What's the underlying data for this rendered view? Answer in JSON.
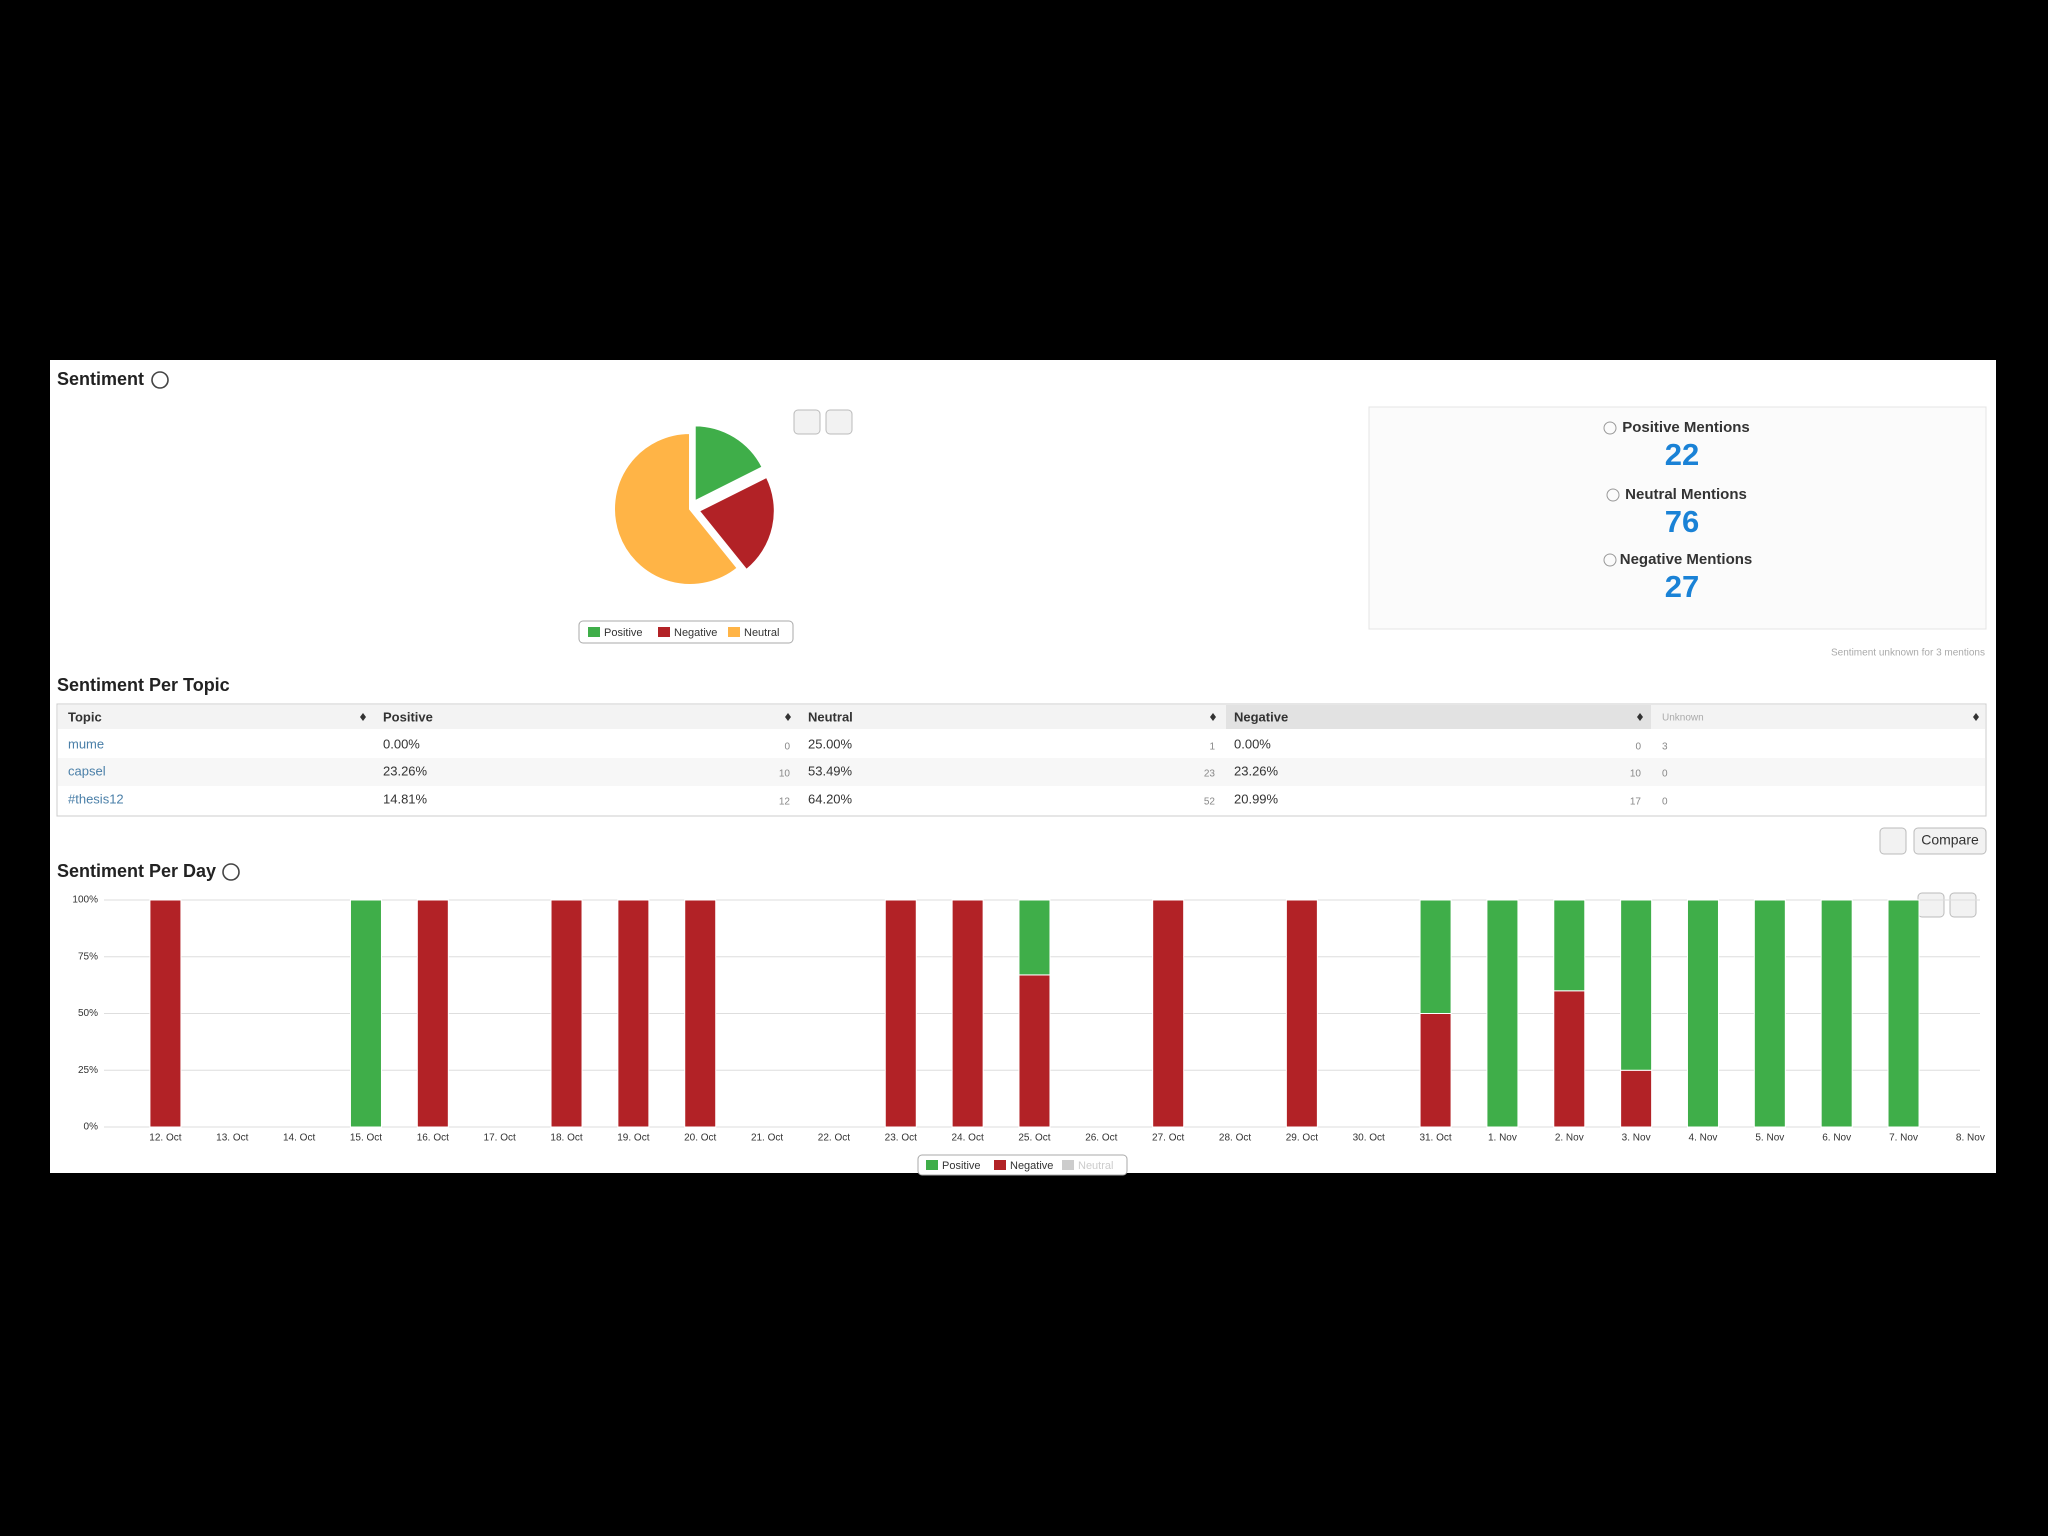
{
  "sentiment": {
    "title": "Sentiment",
    "unknown_note": "Sentiment unknown for 3 mentions"
  },
  "mentions": [
    {
      "label": "Positive Mentions",
      "value": 22
    },
    {
      "label": "Neutral Mentions",
      "value": 76
    },
    {
      "label": "Negative Mentions",
      "value": 27
    }
  ],
  "topic_table": {
    "title": "Sentiment Per Topic",
    "columns": [
      "Topic",
      "Positive",
      "Neutral",
      "Negative",
      "Unknown"
    ],
    "rows": [
      [
        "mume",
        "0.00%",
        0,
        "25.00%",
        1,
        "0.00%",
        0,
        3
      ],
      [
        "capsel",
        "23.26%",
        10,
        "53.49%",
        23,
        "23.26%",
        10,
        0
      ],
      [
        "#thesis12",
        "14.81%",
        12,
        "64.20%",
        52,
        "20.99%",
        17,
        0
      ]
    ]
  },
  "compare_button": "Compare",
  "day_title": "Sentiment Per Day",
  "chart_data": [
    {
      "type": "pie",
      "categories": [
        "Positive",
        "Negative",
        "Neutral"
      ],
      "values": [
        22,
        27,
        76
      ],
      "colors": [
        "#3fae49",
        "#b22226",
        "#ffb446"
      ],
      "sliced": [
        true,
        true,
        false
      ],
      "legend": "bottom"
    },
    {
      "type": "bar",
      "stacked": true,
      "grid": true,
      "legend": "bottom",
      "categories": [
        "12. Oct",
        "13. Oct",
        "14. Oct",
        "15. Oct",
        "16. Oct",
        "17. Oct",
        "18. Oct",
        "19. Oct",
        "20. Oct",
        "21. Oct",
        "22. Oct",
        "23. Oct",
        "24. Oct",
        "25. Oct",
        "26. Oct",
        "27. Oct",
        "28. Oct",
        "29. Oct",
        "30. Oct",
        "31. Oct",
        "1. Nov",
        "2. Nov",
        "3. Nov",
        "4. Nov",
        "5. Nov",
        "6. Nov",
        "7. Nov",
        "8. Nov"
      ],
      "series": [
        {
          "name": "Positive",
          "color": "#3fae49",
          "visible": true,
          "values": [
            0,
            0,
            0,
            100,
            0,
            0,
            0,
            0,
            0,
            0,
            0,
            0,
            0,
            33,
            0,
            0,
            0,
            0,
            0,
            50,
            100,
            40,
            75,
            100,
            100,
            100,
            100,
            0
          ]
        },
        {
          "name": "Negative",
          "color": "#b22226",
          "visible": true,
          "values": [
            100,
            0,
            0,
            0,
            100,
            0,
            100,
            100,
            100,
            0,
            0,
            100,
            100,
            67,
            0,
            100,
            0,
            100,
            0,
            50,
            0,
            60,
            25,
            0,
            0,
            0,
            0,
            0
          ]
        },
        {
          "name": "Neutral",
          "color": "#ffb446",
          "visible": false,
          "values": [
            0,
            0,
            0,
            0,
            0,
            0,
            0,
            0,
            0,
            0,
            0,
            0,
            0,
            0,
            0,
            0,
            0,
            0,
            0,
            0,
            0,
            0,
            0,
            0,
            0,
            0,
            0,
            0
          ]
        }
      ],
      "ylim": [
        0,
        100
      ],
      "yticks": [
        {
          "value": 0,
          "label": "0%"
        },
        {
          "value": 25,
          "label": "25%"
        },
        {
          "value": 50,
          "label": "50%"
        },
        {
          "value": 75,
          "label": "75%"
        },
        {
          "value": 100,
          "label": "100%"
        }
      ]
    }
  ]
}
